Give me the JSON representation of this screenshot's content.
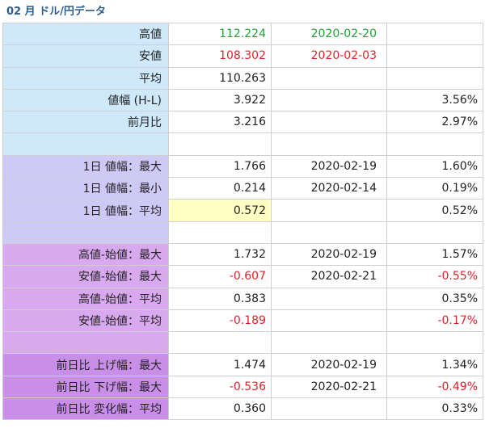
{
  "title": "02 月 ドル/円データ",
  "colors": {
    "high": "#22a13a",
    "low": "#e0222a",
    "negative": "#e0222a",
    "highlight": "#ffffc4"
  },
  "rows": [
    {
      "group": "blue",
      "label": "高値",
      "value": "112.224",
      "date": "2020-02-20",
      "pct": "",
      "valueColor": "green",
      "dateColor": "green"
    },
    {
      "group": "blue",
      "label": "安値",
      "value": "108.302",
      "date": "2020-02-03",
      "pct": "",
      "valueColor": "red",
      "dateColor": "red"
    },
    {
      "group": "blue",
      "label": "平均",
      "value": "110.263",
      "date": "",
      "pct": ""
    },
    {
      "group": "blue",
      "label": "値幅 (H-L)",
      "value": "3.922",
      "date": "",
      "pct": "3.56%"
    },
    {
      "group": "blue",
      "label": "前月比",
      "value": "3.216",
      "date": "",
      "pct": "2.97%"
    },
    {
      "group": "blue",
      "label": "",
      "value": "",
      "date": "",
      "pct": ""
    },
    {
      "group": "lav",
      "label": "1日 値幅：最大",
      "value": "1.766",
      "date": "2020-02-19",
      "pct": "1.60%"
    },
    {
      "group": "lav",
      "label": "1日 値幅：最小",
      "value": "0.214",
      "date": "2020-02-14",
      "pct": "0.19%"
    },
    {
      "group": "lav",
      "label": "1日 値幅：平均",
      "value": "0.572",
      "date": "",
      "pct": "0.52%",
      "highlight": true
    },
    {
      "group": "lav",
      "label": "",
      "value": "",
      "date": "",
      "pct": ""
    },
    {
      "group": "vio",
      "label": "高値-始値：最大",
      "value": "1.732",
      "date": "2020-02-19",
      "pct": "1.57%"
    },
    {
      "group": "vio",
      "label": "安値-始値：最大",
      "value": "-0.607",
      "date": "2020-02-21",
      "pct": "-0.55%",
      "valueColor": "red",
      "pctColor": "red"
    },
    {
      "group": "vio",
      "label": "高値-始値：平均",
      "value": "0.383",
      "date": "",
      "pct": "0.35%"
    },
    {
      "group": "vio",
      "label": "安値-始値：平均",
      "value": "-0.189",
      "date": "",
      "pct": "-0.17%",
      "valueColor": "red",
      "pctColor": "red"
    },
    {
      "group": "vio",
      "label": "",
      "value": "",
      "date": "",
      "pct": ""
    },
    {
      "group": "mag",
      "label": "前日比 上げ幅：最大",
      "value": "1.474",
      "date": "2020-02-19",
      "pct": "1.34%"
    },
    {
      "group": "mag",
      "label": "前日比 下げ幅：最大",
      "value": "-0.536",
      "date": "2020-02-21",
      "pct": "-0.49%",
      "valueColor": "red",
      "pctColor": "red"
    },
    {
      "group": "mag",
      "label": "前日比 変化幅：平均",
      "value": "0.360",
      "date": "",
      "pct": "0.33%"
    }
  ]
}
